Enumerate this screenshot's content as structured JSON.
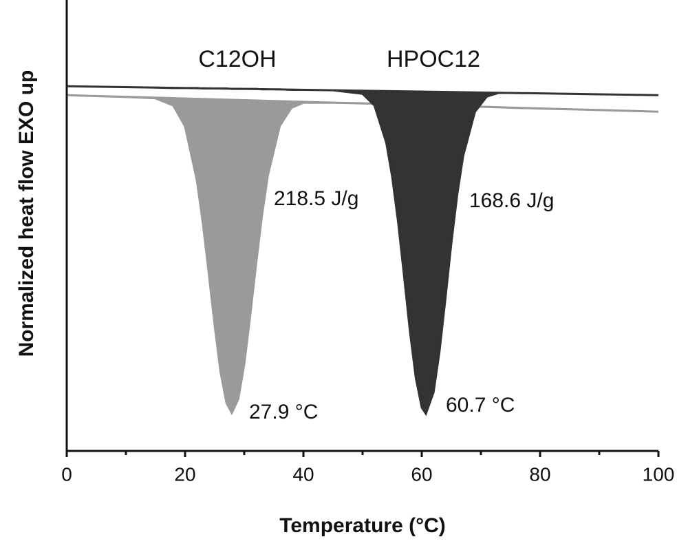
{
  "chart_data": {
    "type": "area",
    "xlabel": "Temperature (°C)",
    "ylabel": "Normalized heat flow EXO up",
    "x": [
      0,
      5,
      10,
      15,
      18,
      20,
      22,
      23,
      24,
      25,
      26,
      27,
      27.9,
      29,
      30,
      31,
      32,
      33,
      34,
      36,
      38,
      40,
      45,
      50,
      52,
      54,
      55,
      56,
      57,
      58,
      59,
      60,
      60.7,
      62,
      63,
      64,
      65,
      66,
      67,
      69,
      71,
      73,
      75,
      80,
      90,
      100
    ],
    "series": [
      {
        "name": "C12OH",
        "color": "#9a9a9a",
        "values": [
          7.95,
          7.93,
          7.91,
          7.88,
          7.72,
          7.25,
          6.04,
          5.09,
          3.97,
          2.8,
          1.76,
          1.07,
          0.85,
          1.16,
          1.93,
          3.01,
          4.17,
          5.26,
          6.16,
          7.26,
          7.67,
          7.78,
          7.78,
          7.77,
          7.76,
          7.75,
          7.75,
          7.74,
          7.74,
          7.74,
          7.73,
          7.73,
          7.73,
          7.72,
          7.72,
          7.71,
          7.71,
          7.71,
          7.7,
          7.69,
          7.69,
          7.68,
          7.67,
          7.65,
          7.62,
          7.58
        ]
      },
      {
        "name": "HPOC12",
        "color": "#333333",
        "values": [
          8.15,
          8.14,
          8.13,
          8.12,
          8.11,
          8.11,
          8.11,
          8.1,
          8.1,
          8.1,
          8.1,
          8.1,
          8.09,
          8.09,
          8.09,
          8.09,
          8.09,
          8.08,
          8.08,
          8.08,
          8.07,
          8.07,
          8.06,
          7.98,
          7.72,
          6.89,
          6.13,
          5.12,
          3.92,
          2.68,
          1.63,
          0.97,
          0.83,
          1.31,
          2.22,
          3.4,
          4.64,
          5.73,
          6.59,
          7.58,
          7.92,
          8.0,
          8.0,
          7.99,
          7.97,
          7.95
        ]
      }
    ],
    "annotations": [
      "218.5 J/g",
      "168.6 J/g",
      "27.9 °C",
      "60.7 °C"
    ],
    "xlim": [
      0,
      100
    ],
    "xticks": [
      0,
      20,
      40,
      60,
      80,
      100
    ],
    "ylim": [
      0,
      10
    ]
  }
}
